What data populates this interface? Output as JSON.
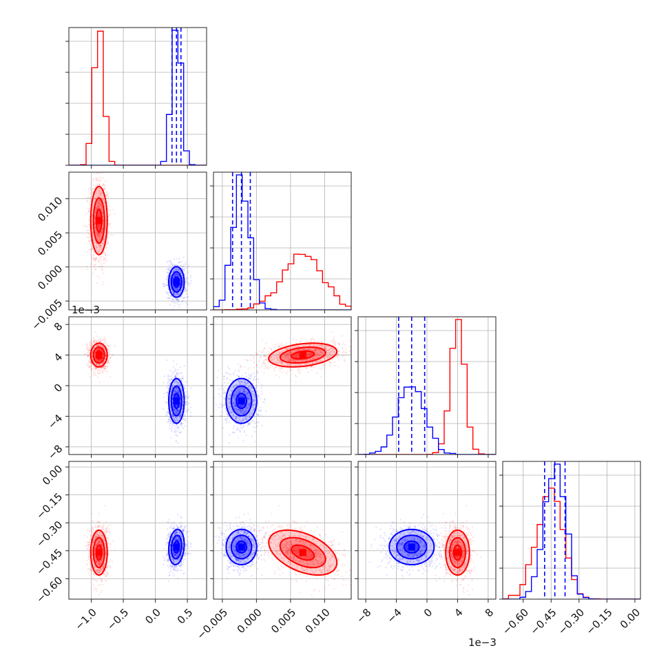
{
  "chart_data": {
    "type": "scatter",
    "subtype": "corner-plot",
    "params": [
      {
        "range": [
          -1.35,
          0.8
        ],
        "ticks": [
          -1.0,
          -0.5,
          0.0,
          0.5
        ],
        "tick_labels": [
          "−1.0",
          "−0.5",
          "0.0",
          "0.5"
        ],
        "offset_label": ""
      },
      {
        "range": [
          -0.0063,
          0.0139
        ],
        "ticks": [
          -0.005,
          0.0,
          0.005,
          0.01
        ],
        "tick_labels": [
          "−0.005",
          "0.000",
          "0.005",
          "0.010"
        ],
        "offset_label": ""
      },
      {
        "range": [
          -0.009,
          0.009
        ],
        "ticks": [
          -0.008,
          -0.004,
          0.0,
          0.004,
          0.008
        ],
        "tick_labels": [
          "−8",
          "−4",
          "0",
          "4",
          "8"
        ],
        "offset_label": "1e−3"
      },
      {
        "range": [
          -0.71,
          0.03
        ],
        "ticks": [
          -0.6,
          -0.45,
          -0.3,
          -0.15,
          0.0
        ],
        "tick_labels": [
          "−0.60",
          "−0.45",
          "−0.30",
          "−0.15",
          "0.00"
        ],
        "offset_label": ""
      }
    ],
    "series": [
      {
        "color": "#ff0000",
        "means": [
          -0.88,
          0.0068,
          0.004,
          -0.46
        ],
        "stds": [
          0.075,
          0.0029,
          0.0009,
          0.07
        ]
      },
      {
        "color": "#0000ff",
        "means": [
          0.33,
          -0.0022,
          -0.002,
          -0.43
        ],
        "stds": [
          0.07,
          0.0013,
          0.0017,
          0.055
        ]
      }
    ],
    "correlations": [
      {
        "series": 0,
        "pair": [
          1,
          2
        ],
        "r": 0.3
      },
      {
        "series": 0,
        "pair": [
          1,
          3
        ],
        "r": -0.45
      },
      {
        "series": 1,
        "pair": [
          0,
          3
        ],
        "r": 0.15
      }
    ],
    "quantile_lines": {
      "color": "#0000ff",
      "style": "dashed",
      "series": 1,
      "quantiles": [
        0.16,
        0.5,
        0.84
      ]
    },
    "contour_levels": [
      0.5,
      1.0,
      1.5
    ],
    "grid": true
  }
}
